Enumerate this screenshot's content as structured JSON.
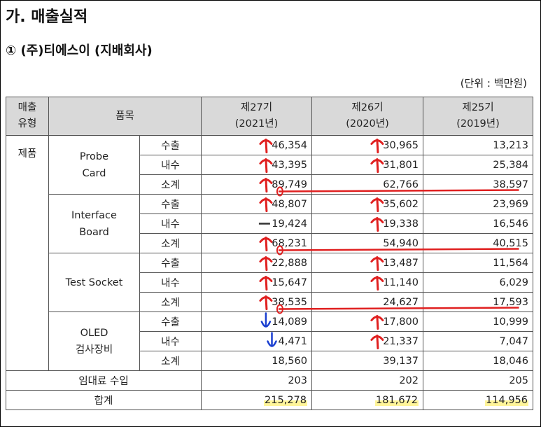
{
  "header": {
    "title": "가. 매출실적",
    "subtitle": "① (주)티에스이 (지배회사)",
    "unit": "(단위 : 백만원)"
  },
  "table": {
    "columns": {
      "type": "매출\n유형",
      "item": "품목",
      "y27": "제27기\n(2021년)",
      "y26": "제26기\n(2020년)",
      "y25": "제25기\n(2019년)"
    },
    "type_label": "제품",
    "groups": [
      {
        "name": "Probe\nCard",
        "rows": [
          {
            "label": "수출",
            "v27": "46,354",
            "v26": "30,965",
            "v25": "13,213"
          },
          {
            "label": "내수",
            "v27": "43,395",
            "v26": "31,801",
            "v25": "25,384"
          },
          {
            "label": "소계",
            "v27": "89,749",
            "v26": "62,766",
            "v25": "38,597"
          }
        ]
      },
      {
        "name": "Interface\nBoard",
        "rows": [
          {
            "label": "수출",
            "v27": "48,807",
            "v26": "35,602",
            "v25": "23,969"
          },
          {
            "label": "내수",
            "v27": "19,424",
            "v26": "19,338",
            "v25": "16,546"
          },
          {
            "label": "소계",
            "v27": "68,231",
            "v26": "54,940",
            "v25": "40,515"
          }
        ]
      },
      {
        "name": "Test Socket",
        "rows": [
          {
            "label": "수출",
            "v27": "22,888",
            "v26": "13,487",
            "v25": "11,564"
          },
          {
            "label": "내수",
            "v27": "15,647",
            "v26": "11,140",
            "v25": "6,029"
          },
          {
            "label": "소계",
            "v27": "38,535",
            "v26": "24,627",
            "v25": "17,593"
          }
        ]
      },
      {
        "name": "OLED\n검사장비",
        "rows": [
          {
            "label": "수출",
            "v27": "14,089",
            "v26": "17,800",
            "v25": "10,999"
          },
          {
            "label": "내수",
            "v27": "4,471",
            "v26": "21,337",
            "v25": "7,047"
          },
          {
            "label": "소계",
            "v27": "18,560",
            "v26": "39,137",
            "v25": "18,046"
          }
        ]
      }
    ],
    "rental": {
      "label": "임대료 수입",
      "v27": "203",
      "v26": "202",
      "v25": "205"
    },
    "total": {
      "label": "합계",
      "v27": "215,278",
      "v26": "181,672",
      "v25": "114,956"
    }
  },
  "annotation_colors": {
    "up": "#e02020",
    "down": "#1a3fd0",
    "flat": "#333333",
    "highlight": "#fff59a"
  }
}
